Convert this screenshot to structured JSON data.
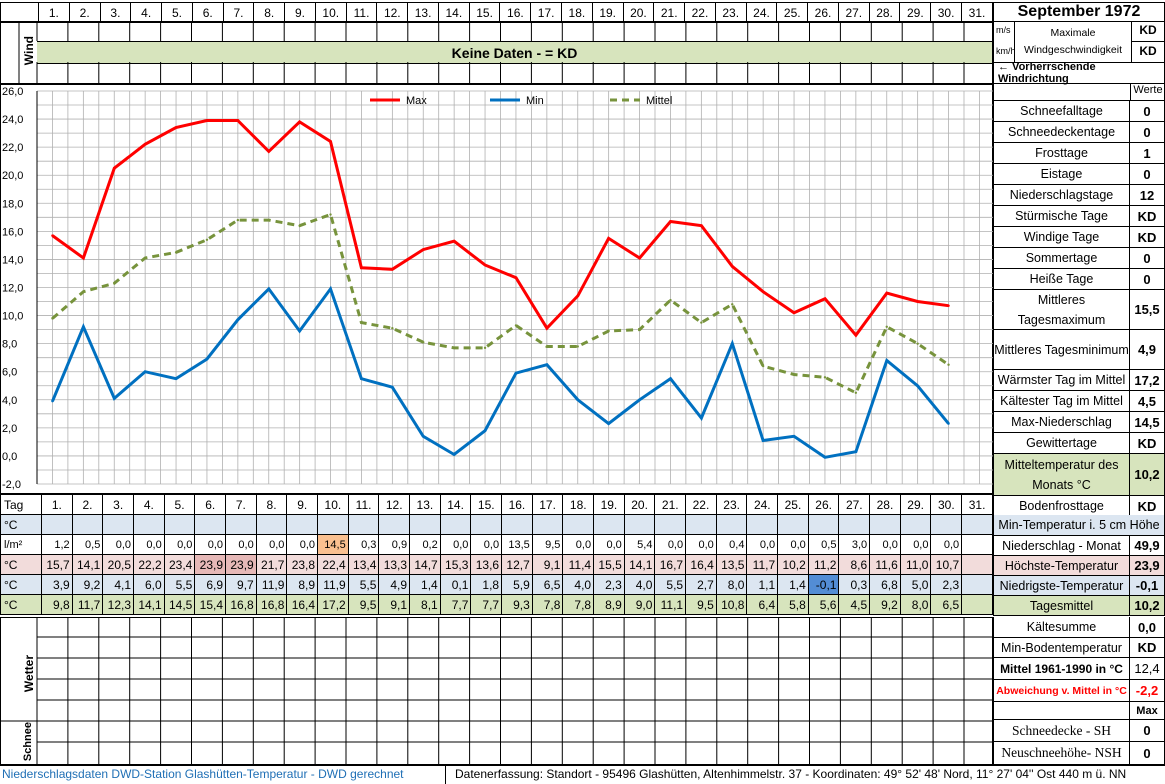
{
  "header": {
    "month_title": "September 1972",
    "days": [
      "1.",
      "2.",
      "3.",
      "4.",
      "5.",
      "6.",
      "7.",
      "8.",
      "9.",
      "10.",
      "11.",
      "12.",
      "13.",
      "14.",
      "15.",
      "16.",
      "17.",
      "18.",
      "19.",
      "20.",
      "21.",
      "22.",
      "23.",
      "24.",
      "25.",
      "26.",
      "27.",
      "28.",
      "29.",
      "30.",
      "31."
    ],
    "wind_label": "Wind",
    "no_data": "Keine Daten -  = KD",
    "unit_ms": "m/s",
    "unit_kmh": "km/h",
    "max_wind_label": "Maximale Windgeschwindigkeit",
    "max_wind_ms": "KD",
    "max_wind_kmh": "KD",
    "wind_dir_label": "← Vorherrschende Windrichtung",
    "werte_label": "Werte"
  },
  "stats": [
    {
      "label": "Schneefalltage",
      "value": "0"
    },
    {
      "label": "Schneedeckentage",
      "value": "0"
    },
    {
      "label": "Frosttage",
      "value": "1"
    },
    {
      "label": "Eistage",
      "value": "0"
    },
    {
      "label": "Niederschlagstage",
      "value": "12"
    },
    {
      "label": "Stürmische Tage",
      "value": "KD"
    },
    {
      "label": "Windige Tage",
      "value": "KD"
    },
    {
      "label": "Sommertage",
      "value": "0"
    },
    {
      "label": "Heiße Tage",
      "value": "0"
    },
    {
      "label": "Mittleres Tagesmaximum",
      "value": "15,5"
    },
    {
      "label": "Mittleres Tagesminimum",
      "value": "4,9"
    },
    {
      "label": "Wärmster Tag im Mittel",
      "value": "17,2"
    },
    {
      "label": "Kältester Tag im Mittel",
      "value": "4,5"
    },
    {
      "label": "Max-Niederschlag",
      "value": "14,5"
    },
    {
      "label": "Gewittertage",
      "value": "KD"
    },
    {
      "label": "Mitteltemperatur des Monats °C",
      "value": "10,2"
    },
    {
      "label": "Bodenfrosttage",
      "value": "KD"
    }
  ],
  "table": {
    "tag_label": "Tag",
    "unit_c": "°C",
    "unit_lm": "l/m²",
    "min5_label": "Min-Temperatur i. 5 cm Höhe",
    "precip_label": "Niederschlag - Monat",
    "precip_value": "49,9",
    "max_label": "Höchste-Temperatur",
    "max_value": "23,9",
    "min_label": "Niedrigste-Temperatur",
    "min_value": "-0,1",
    "mean_label": "Tagesmittel",
    "mean_value": "10,2",
    "precip": [
      "1,2",
      "0,5",
      "0,0",
      "0,0",
      "0,0",
      "0,0",
      "0,0",
      "0,0",
      "0,0",
      "14,5",
      "0,3",
      "0,9",
      "0,2",
      "0,0",
      "0,0",
      "13,5",
      "9,5",
      "0,0",
      "0,0",
      "5,4",
      "0,0",
      "0,0",
      "0,4",
      "0,0",
      "0,0",
      "0,5",
      "3,0",
      "0,0",
      "0,0",
      "0,0"
    ],
    "tmax": [
      "15,7",
      "14,1",
      "20,5",
      "22,2",
      "23,4",
      "23,9",
      "23,9",
      "21,7",
      "23,8",
      "22,4",
      "13,4",
      "13,3",
      "14,7",
      "15,3",
      "13,6",
      "12,7",
      "9,1",
      "11,4",
      "15,5",
      "14,1",
      "16,7",
      "16,4",
      "13,5",
      "11,7",
      "10,2",
      "11,2",
      "8,6",
      "11,6",
      "11,0",
      "10,7"
    ],
    "tmin": [
      "3,9",
      "9,2",
      "4,1",
      "6,0",
      "5,5",
      "6,9",
      "9,7",
      "11,9",
      "8,9",
      "11,9",
      "5,5",
      "4,9",
      "1,4",
      "0,1",
      "1,8",
      "5,9",
      "6,5",
      "4,0",
      "2,3",
      "4,0",
      "5,5",
      "2,7",
      "8,0",
      "1,1",
      "1,4",
      "-0,1",
      "0,3",
      "6,8",
      "5,0",
      "2,3"
    ],
    "tmean": [
      "9,8",
      "11,7",
      "12,3",
      "14,1",
      "14,5",
      "15,4",
      "16,8",
      "16,8",
      "16,4",
      "17,2",
      "9,5",
      "9,1",
      "8,1",
      "7,7",
      "7,7",
      "9,3",
      "7,8",
      "7,8",
      "8,9",
      "9,0",
      "11,1",
      "9,5",
      "10,8",
      "6,4",
      "5,8",
      "5,6",
      "4,5",
      "9,2",
      "8,0",
      "6,5"
    ]
  },
  "lower": {
    "wetter_label": "Wetter",
    "schnee_label": "Schnee",
    "kaeltesumme_label": "Kältesumme",
    "kaeltesumme_value": "0,0",
    "minboden_label": "Min-Bodentemperatur",
    "minboden_value": "KD",
    "mittel_label": "Mittel 1961-1990 in °C",
    "mittel_value": "12,4",
    "abw_label": "Abweichung v. Mittel in °C",
    "abw_value": "-2,2",
    "max_label": "Max",
    "sh_label": "Schneedecke -   SH",
    "sh_value": "0",
    "nsh_label": "Neuschneehöhe- NSH",
    "nsh_value": "0"
  },
  "footer": {
    "left": "Niederschlagsdaten DWD-Station Glashütten-Temperatur -   DWD gerechnet",
    "right": "Datenerfassung:  Standort -   95496  Glashütten, Altenhimmelstr. 37 - Koordinaten:  49° 52' 48' Nord,   11° 27' 04'' Ost   440 m ü. NN"
  },
  "colors": {
    "max": "#ff0000",
    "min": "#0070c0",
    "mean": "#77933c"
  },
  "chart_data": {
    "type": "line",
    "x": [
      1,
      2,
      3,
      4,
      5,
      6,
      7,
      8,
      9,
      10,
      11,
      12,
      13,
      14,
      15,
      16,
      17,
      18,
      19,
      20,
      21,
      22,
      23,
      24,
      25,
      26,
      27,
      28,
      29,
      30
    ],
    "ylim": [
      -2,
      26
    ],
    "yticks": [
      "26,0",
      "24,0",
      "22,0",
      "20,0",
      "18,0",
      "16,0",
      "14,0",
      "12,0",
      "10,0",
      "8,0",
      "6,0",
      "4,0",
      "2,0",
      "0,0",
      "-2,0"
    ],
    "grid": true,
    "legend_position": "top",
    "series": [
      {
        "name": "Max",
        "color": "#ff0000",
        "dashed": false,
        "values": [
          15.7,
          14.1,
          20.5,
          22.2,
          23.4,
          23.9,
          23.9,
          21.7,
          23.8,
          22.4,
          13.4,
          13.3,
          14.7,
          15.3,
          13.6,
          12.7,
          9.1,
          11.4,
          15.5,
          14.1,
          16.7,
          16.4,
          13.5,
          11.7,
          10.2,
          11.2,
          8.6,
          11.6,
          11.0,
          10.7
        ]
      },
      {
        "name": "Min",
        "color": "#0070c0",
        "dashed": false,
        "values": [
          3.9,
          9.2,
          4.1,
          6.0,
          5.5,
          6.9,
          9.7,
          11.9,
          8.9,
          11.9,
          5.5,
          4.9,
          1.4,
          0.1,
          1.8,
          5.9,
          6.5,
          4.0,
          2.3,
          4.0,
          5.5,
          2.7,
          8.0,
          1.1,
          1.4,
          -0.1,
          0.3,
          6.8,
          5.0,
          2.3
        ]
      },
      {
        "name": "Mittel",
        "color": "#77933c",
        "dashed": true,
        "values": [
          9.8,
          11.7,
          12.3,
          14.1,
          14.5,
          15.4,
          16.8,
          16.8,
          16.4,
          17.2,
          9.5,
          9.1,
          8.1,
          7.7,
          7.7,
          9.3,
          7.8,
          7.8,
          8.9,
          9.0,
          11.1,
          9.5,
          10.8,
          6.4,
          5.8,
          5.6,
          4.5,
          9.2,
          8.0,
          6.5
        ]
      }
    ]
  }
}
